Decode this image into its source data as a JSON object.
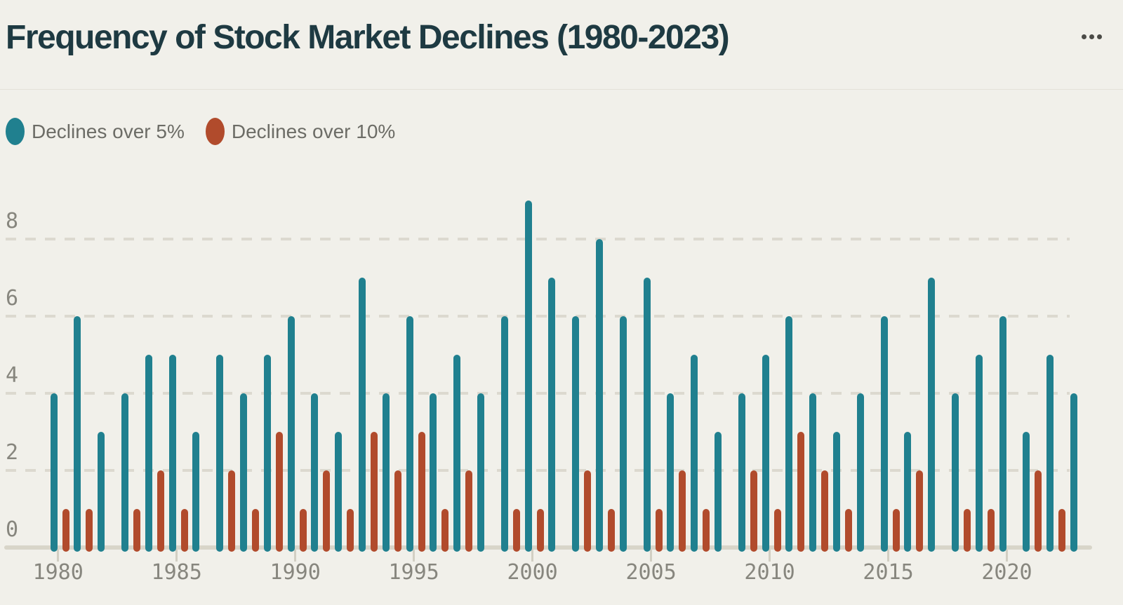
{
  "chart_data": {
    "type": "bar",
    "title": "Frequency of Stock Market Declines (1980-2023)",
    "categories": [
      1980,
      1981,
      1982,
      1983,
      1984,
      1985,
      1986,
      1987,
      1988,
      1989,
      1990,
      1991,
      1992,
      1993,
      1994,
      1995,
      1996,
      1997,
      1998,
      1999,
      2000,
      2001,
      2002,
      2003,
      2004,
      2005,
      2006,
      2007,
      2008,
      2009,
      2010,
      2011,
      2012,
      2013,
      2014,
      2015,
      2016,
      2017,
      2018,
      2019,
      2020,
      2021,
      2022,
      2023
    ],
    "series": [
      {
        "name": "Declines over 5%",
        "color": "#20808f",
        "values": [
          4,
          6,
          3,
          4,
          5,
          5,
          3,
          5,
          4,
          5,
          6,
          4,
          3,
          7,
          4,
          6,
          4,
          5,
          4,
          6,
          9,
          7,
          6,
          8,
          6,
          7,
          4,
          5,
          3,
          4,
          5,
          6,
          4,
          3,
          4,
          6,
          3,
          7,
          4,
          5,
          6,
          3,
          5,
          4
        ]
      },
      {
        "name": "Declines over 10%",
        "color": "#b14b2c",
        "values": [
          1,
          1,
          0,
          1,
          2,
          1,
          0,
          2,
          1,
          3,
          1,
          2,
          1,
          3,
          2,
          3,
          1,
          2,
          0,
          1,
          1,
          0,
          2,
          1,
          0,
          1,
          2,
          1,
          0,
          2,
          1,
          3,
          2,
          1,
          0,
          1,
          2,
          0,
          1,
          1,
          0,
          2,
          1,
          0
        ]
      }
    ],
    "y_axis": {
      "ticks": [
        0,
        2,
        4,
        6,
        8
      ],
      "range": [
        0,
        9
      ],
      "gridlines": "dashed"
    },
    "x_axis": {
      "tick_labels": [
        "1980",
        "1985",
        "1990",
        "1995",
        "2000",
        "2005",
        "2010",
        "2015",
        "2020"
      ]
    },
    "legend_position": "top-left",
    "grid": "horizontal-dashed"
  },
  "menu": {
    "icon": "ellipsis"
  },
  "colors": {
    "background": "#f1f0ea",
    "title": "#1e3a42",
    "axis_text": "#87867e",
    "legend_text": "#6c6c66",
    "gridline": "#dcd9cf",
    "axis_line": "#d8d5c9"
  }
}
